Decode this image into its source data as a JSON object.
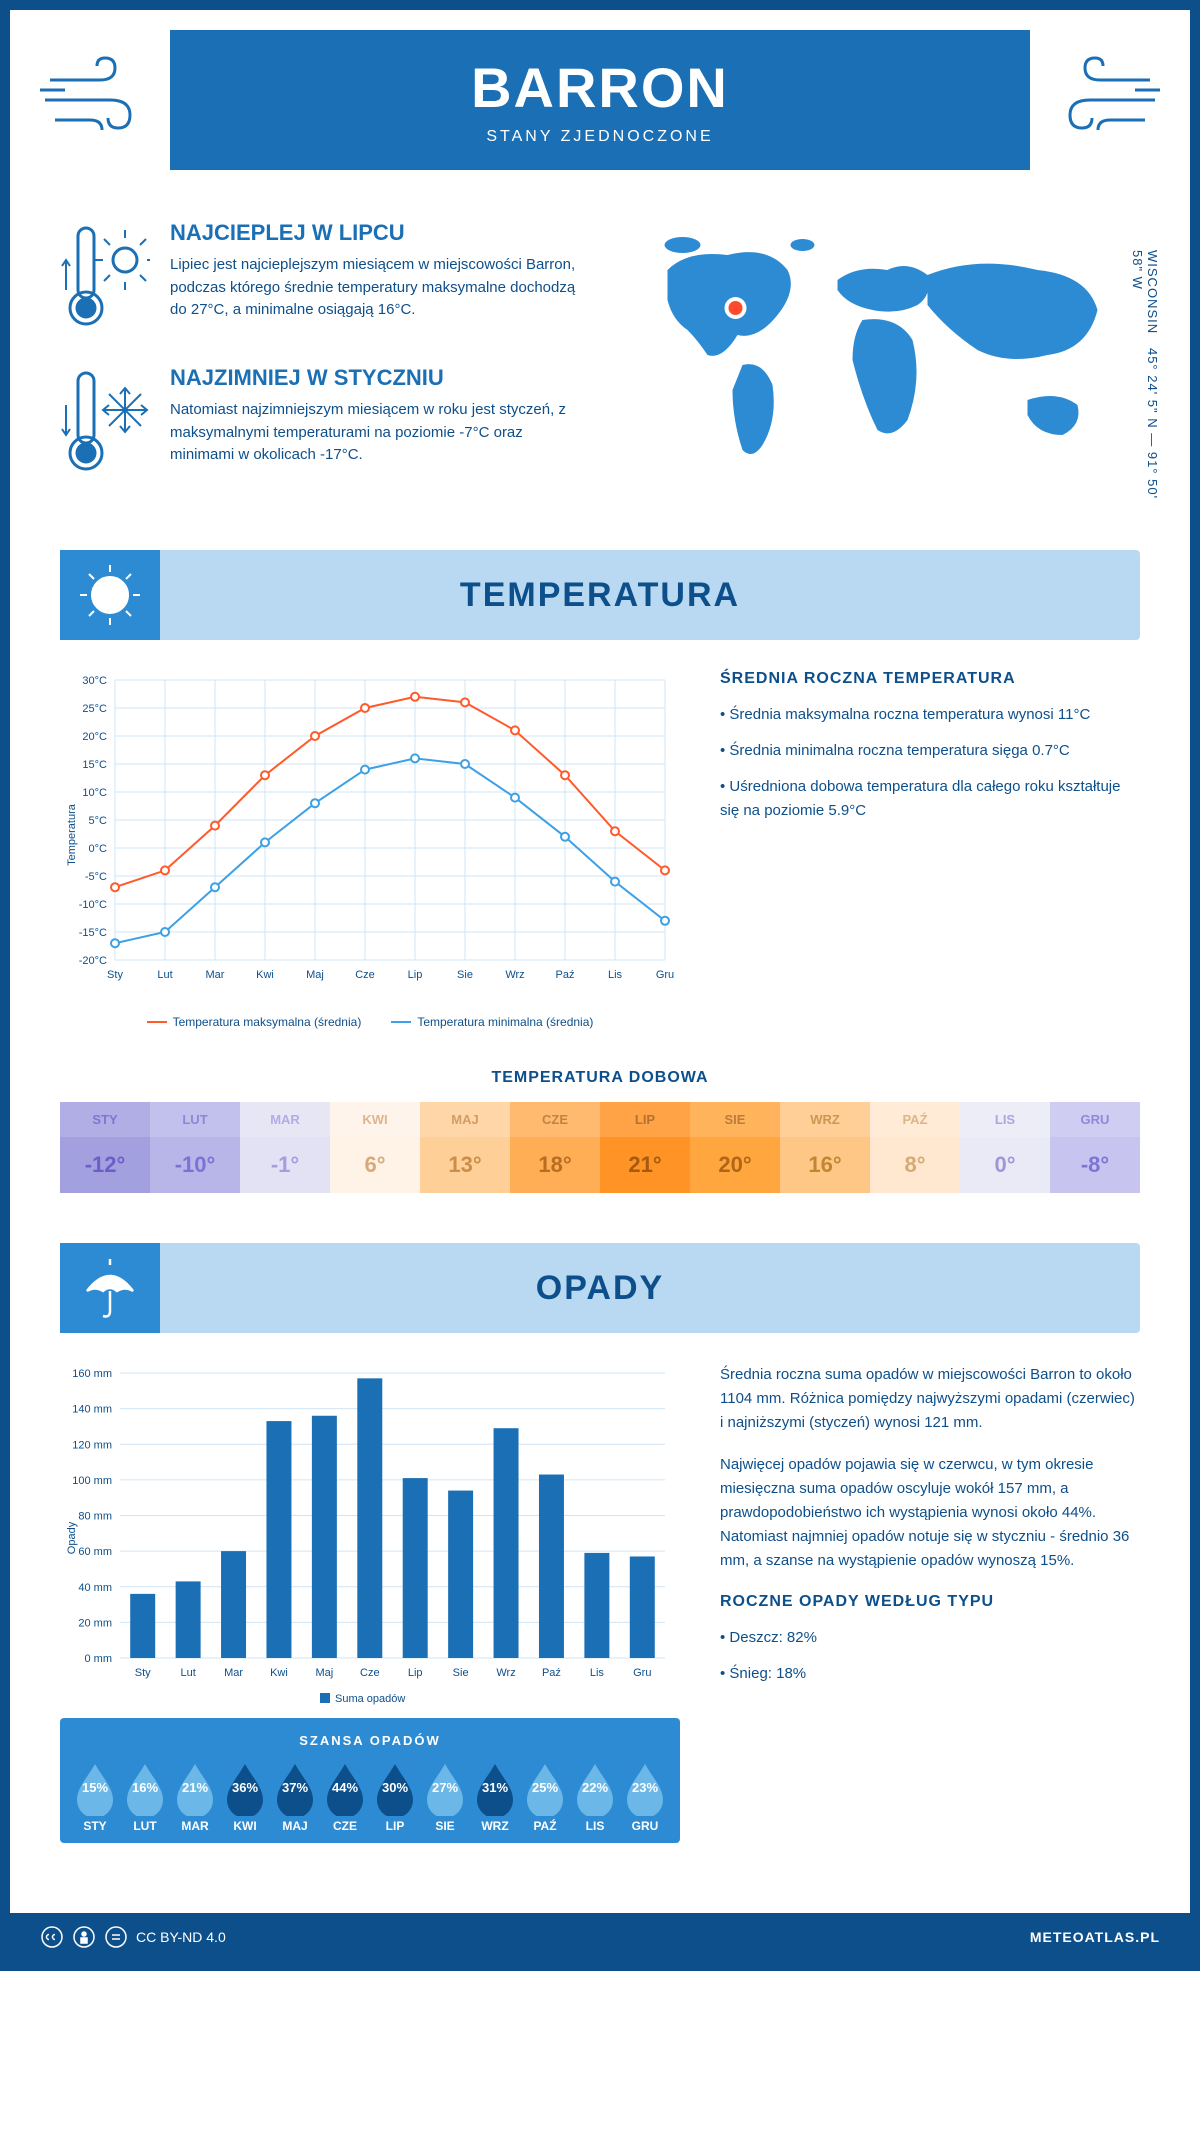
{
  "header": {
    "title": "BARRON",
    "subtitle": "STANY ZJEDNOCZONE"
  },
  "coords": "45° 24' 5\" N — 91° 50' 58\" W",
  "region": "WISCONSIN",
  "fact_hot": {
    "title": "NAJCIEPLEJ W LIPCU",
    "text": "Lipiec jest najcieplejszym miesiącem w miejscowości Barron, podczas którego średnie temperatury maksymalne dochodzą do 27°C, a minimalne osiągają 16°C."
  },
  "fact_cold": {
    "title": "NAJZIMNIEJ W STYCZNIU",
    "text": "Natomiast najzimniejszym miesiącem w roku jest styczeń, z maksymalnymi temperaturami na poziomie -7°C oraz minimami w okolicach -17°C."
  },
  "months": [
    "Sty",
    "Lut",
    "Mar",
    "Kwi",
    "Maj",
    "Cze",
    "Lip",
    "Sie",
    "Wrz",
    "Paź",
    "Lis",
    "Gru"
  ],
  "months_upper": [
    "STY",
    "LUT",
    "MAR",
    "KWI",
    "MAJ",
    "CZE",
    "LIP",
    "SIE",
    "WRZ",
    "PAŹ",
    "LIS",
    "GRU"
  ],
  "temp_section": {
    "title": "TEMPERATURA",
    "chart": {
      "type": "line",
      "ylabel": "Temperatura",
      "ylim": [
        -20,
        30
      ],
      "ytick_step": 5,
      "tick_suffix": "°C",
      "grid_color": "#d0e4f5",
      "background": "#ffffff",
      "series": [
        {
          "name": "Temperatura maksymalna (średnia)",
          "color": "#ff5a2b",
          "values": [
            -7,
            -4,
            4,
            13,
            20,
            25,
            27,
            26,
            21,
            13,
            3,
            -4
          ]
        },
        {
          "name": "Temperatura minimalna (średnia)",
          "color": "#3da0e6",
          "values": [
            -17,
            -15,
            -7,
            1,
            8,
            14,
            16,
            15,
            9,
            2,
            -6,
            -13
          ]
        }
      ]
    },
    "side_title": "ŚREDNIA ROCZNA TEMPERATURA",
    "side_bullets": [
      "Średnia maksymalna roczna temperatura wynosi 11°C",
      "Średnia minimalna roczna temperatura sięga 0.7°C",
      "Uśredniona dobowa temperatura dla całego roku kształtuje się na poziomie 5.9°C"
    ],
    "daily_title": "TEMPERATURA DOBOWA",
    "daily": {
      "values": [
        "-12°",
        "-10°",
        "-1°",
        "6°",
        "13°",
        "18°",
        "21°",
        "20°",
        "16°",
        "8°",
        "0°",
        "-8°"
      ],
      "colors": [
        "#a3a0e0",
        "#b8b6e9",
        "#e3e2f4",
        "#fff3e8",
        "#ffcf98",
        "#ffae56",
        "#ff9326",
        "#ffa63f",
        "#ffc785",
        "#ffe8cf",
        "#eaeaf6",
        "#c7c5ef"
      ],
      "text_colors": [
        "#6a5fc9",
        "#7b72d3",
        "#a49ee0",
        "#d9a878",
        "#cc8d4a",
        "#b76e20",
        "#a65a0e",
        "#b06616",
        "#c28534",
        "#d6aa73",
        "#9d97d8",
        "#7d74d4"
      ]
    }
  },
  "rain_section": {
    "title": "OPADY",
    "chart": {
      "type": "bar",
      "ylabel": "Opady",
      "ylim": [
        0,
        160
      ],
      "ytick_step": 20,
      "tick_suffix": " mm",
      "bar_color": "#1a6fb5",
      "grid_color": "#d0e4f5",
      "legend": "Suma opadów",
      "values": [
        36,
        43,
        60,
        133,
        136,
        157,
        101,
        94,
        129,
        103,
        59,
        57
      ]
    },
    "side_paragraphs": [
      "Średnia roczna suma opadów w miejscowości Barron to około 1104 mm. Różnica pomiędzy najwyższymi opadami (czerwiec) i najniższymi (styczeń) wynosi 121 mm.",
      "Najwięcej opadów pojawia się w czerwcu, w tym okresie miesięczna suma opadów oscyluje wokół 157 mm, a prawdopodobieństwo ich wystąpienia wynosi około 44%. Natomiast najmniej opadów notuje się w styczniu - średnio 36 mm, a szanse na wystąpienie opadów wynoszą 15%."
    ],
    "chance_title": "SZANSA OPADÓW",
    "chance": {
      "values": [
        15,
        16,
        21,
        36,
        37,
        44,
        30,
        27,
        31,
        25,
        22,
        23
      ],
      "low_color": "#6bb8e8",
      "high_color": "#0d4f8b",
      "threshold": 30
    },
    "type_title": "ROCZNE OPADY WEDŁUG TYPU",
    "type_bullets": [
      "Deszcz: 82%",
      "Śnieg: 18%"
    ]
  },
  "footer": {
    "license": "CC BY-ND 4.0",
    "site": "METEOATLAS.PL"
  }
}
